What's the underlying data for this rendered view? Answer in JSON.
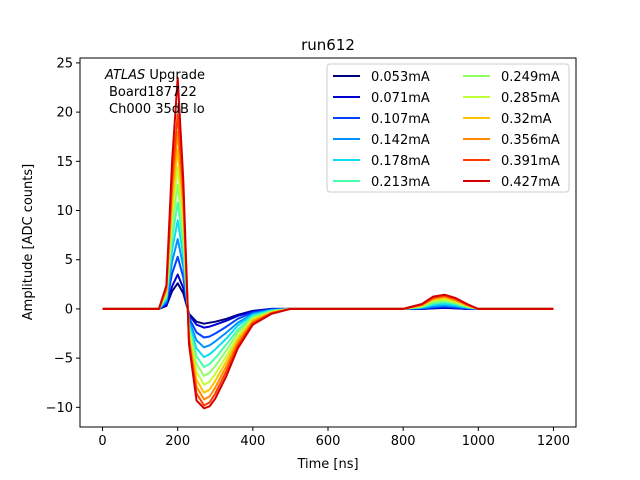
{
  "chart_data": {
    "type": "line",
    "title": "run612",
    "xlabel": "Time [ns]",
    "ylabel": "Amplitude [ADC counts]",
    "xlim": [
      -60,
      1260
    ],
    "ylim": [
      -12,
      25.5
    ],
    "x_ticks": [
      0,
      200,
      400,
      600,
      800,
      1000,
      1200
    ],
    "y_ticks": [
      -10,
      -5,
      0,
      5,
      10,
      15,
      20,
      25
    ],
    "x_tick_labels": [
      "0",
      "200",
      "400",
      "600",
      "800",
      "1000",
      "1200"
    ],
    "y_tick_labels": [
      "−10",
      "−5",
      "0",
      "5",
      "10",
      "15",
      "20",
      "25"
    ],
    "grid": false,
    "legend_position": "top-right",
    "legend_columns": 2,
    "annotation": {
      "line1_italic": "ATLAS",
      "line1_rest": " Upgrade",
      "line2": "Board187722",
      "line3": "Ch000 35dB lo"
    },
    "x": [
      0,
      100,
      150,
      170,
      185,
      200,
      215,
      230,
      250,
      270,
      285,
      300,
      330,
      360,
      400,
      450,
      500,
      600,
      700,
      800,
      850,
      880,
      910,
      940,
      970,
      1000,
      1100,
      1200
    ],
    "series": [
      {
        "name": "0.053mA",
        "color": "#00007f",
        "values": [
          0,
          0,
          0,
          0.3,
          1.8,
          2.6,
          1.6,
          -0.5,
          -1.3,
          -1.5,
          -1.4,
          -1.3,
          -1.0,
          -0.6,
          -0.2,
          0.0,
          0.0,
          0.0,
          0.0,
          0.0,
          0.0,
          0.05,
          0.1,
          0.05,
          0.0,
          0.0,
          0.0,
          0.0
        ]
      },
      {
        "name": "0.071mA",
        "color": "#0000d0",
        "values": [
          0,
          0,
          0,
          0.4,
          2.3,
          3.5,
          2.1,
          -0.6,
          -1.6,
          -1.9,
          -1.8,
          -1.6,
          -1.2,
          -0.7,
          -0.25,
          0.0,
          0.0,
          0.0,
          0.0,
          0.0,
          0.0,
          0.08,
          0.15,
          0.08,
          0.0,
          0.0,
          0.0,
          0.0
        ]
      },
      {
        "name": "0.107mA",
        "color": "#0044ff",
        "values": [
          0,
          0,
          0,
          0.6,
          3.6,
          5.3,
          3.2,
          -0.9,
          -2.4,
          -2.9,
          -2.8,
          -2.5,
          -1.8,
          -1.0,
          -0.35,
          -0.05,
          0.0,
          0.0,
          0.0,
          0.0,
          0.05,
          0.15,
          0.25,
          0.15,
          0.05,
          0.0,
          0.0,
          0.0
        ]
      },
      {
        "name": "0.142mA",
        "color": "#0090ff",
        "values": [
          0,
          0,
          0,
          0.8,
          4.8,
          7.1,
          4.3,
          -1.2,
          -3.2,
          -3.9,
          -3.7,
          -3.3,
          -2.4,
          -1.4,
          -0.5,
          -0.1,
          0.0,
          0.0,
          0.0,
          0.0,
          0.1,
          0.25,
          0.35,
          0.25,
          0.1,
          0.0,
          0.0,
          0.0
        ]
      },
      {
        "name": "0.178mA",
        "color": "#0ddcef",
        "values": [
          0,
          0,
          0,
          1.0,
          6.0,
          9.0,
          5.4,
          -1.5,
          -4.0,
          -4.9,
          -4.6,
          -4.1,
          -3.0,
          -1.7,
          -0.6,
          -0.15,
          0.0,
          0.0,
          0.0,
          0.0,
          0.15,
          0.4,
          0.5,
          0.35,
          0.15,
          0.0,
          0.0,
          0.0
        ]
      },
      {
        "name": "0.213mA",
        "color": "#49ffad",
        "values": [
          0,
          0,
          0,
          1.2,
          7.2,
          10.8,
          6.5,
          -1.8,
          -4.8,
          -5.9,
          -5.6,
          -5.0,
          -3.6,
          -2.1,
          -0.75,
          -0.2,
          0.0,
          0.0,
          0.0,
          0.0,
          0.2,
          0.55,
          0.7,
          0.5,
          0.2,
          0.0,
          0.0,
          0.0
        ]
      },
      {
        "name": "0.249mA",
        "color": "#90ff66",
        "values": [
          0,
          0,
          0,
          1.4,
          8.4,
          12.6,
          7.6,
          -2.1,
          -5.6,
          -6.8,
          -6.5,
          -5.8,
          -4.2,
          -2.4,
          -0.9,
          -0.25,
          0.0,
          0.0,
          0.0,
          0.0,
          0.25,
          0.7,
          0.85,
          0.6,
          0.25,
          0.0,
          0.0,
          0.0
        ]
      },
      {
        "name": "0.285mA",
        "color": "#c1ff36",
        "values": [
          0,
          0,
          0,
          1.6,
          9.6,
          14.4,
          8.7,
          -2.4,
          -6.4,
          -7.7,
          -7.4,
          -6.6,
          -4.8,
          -2.8,
          -1.0,
          -0.3,
          0.0,
          0.0,
          0.0,
          0.0,
          0.3,
          0.85,
          1.0,
          0.7,
          0.3,
          0.0,
          0.0,
          0.0
        ]
      },
      {
        "name": "0.32mA",
        "color": "#ffc400",
        "values": [
          0,
          0,
          0,
          1.8,
          10.8,
          16.2,
          9.8,
          -2.7,
          -7.2,
          -8.5,
          -8.2,
          -7.3,
          -5.3,
          -3.1,
          -1.15,
          -0.35,
          0.0,
          0.0,
          0.0,
          0.0,
          0.35,
          0.95,
          1.15,
          0.8,
          0.35,
          0.0,
          0.0,
          0.0
        ]
      },
      {
        "name": "0.356mA",
        "color": "#ff8a00",
        "values": [
          0,
          0,
          0,
          2.0,
          12.0,
          18.0,
          10.9,
          -3.0,
          -7.9,
          -9.2,
          -8.9,
          -8.0,
          -5.8,
          -3.4,
          -1.3,
          -0.4,
          0.0,
          0.0,
          0.0,
          0.0,
          0.4,
          1.05,
          1.25,
          0.9,
          0.4,
          0.0,
          0.0,
          0.0
        ]
      },
      {
        "name": "0.391mA",
        "color": "#ff3b00",
        "values": [
          0,
          0,
          0,
          2.2,
          13.2,
          19.8,
          12.0,
          -3.3,
          -8.6,
          -9.8,
          -9.5,
          -8.6,
          -6.3,
          -3.7,
          -1.45,
          -0.45,
          0.0,
          0.0,
          0.0,
          0.0,
          0.45,
          1.15,
          1.35,
          1.0,
          0.45,
          0.0,
          0.0,
          0.0
        ]
      },
      {
        "name": "0.427mA",
        "color": "#d40000",
        "values": [
          0,
          0,
          0,
          2.4,
          15.0,
          23.5,
          13.1,
          -3.6,
          -9.3,
          -10.1,
          -9.9,
          -9.1,
          -6.8,
          -4.0,
          -1.6,
          -0.5,
          0.0,
          0.0,
          0.0,
          0.0,
          0.5,
          1.25,
          1.45,
          1.1,
          0.5,
          0.0,
          0.0,
          0.0
        ]
      }
    ]
  }
}
